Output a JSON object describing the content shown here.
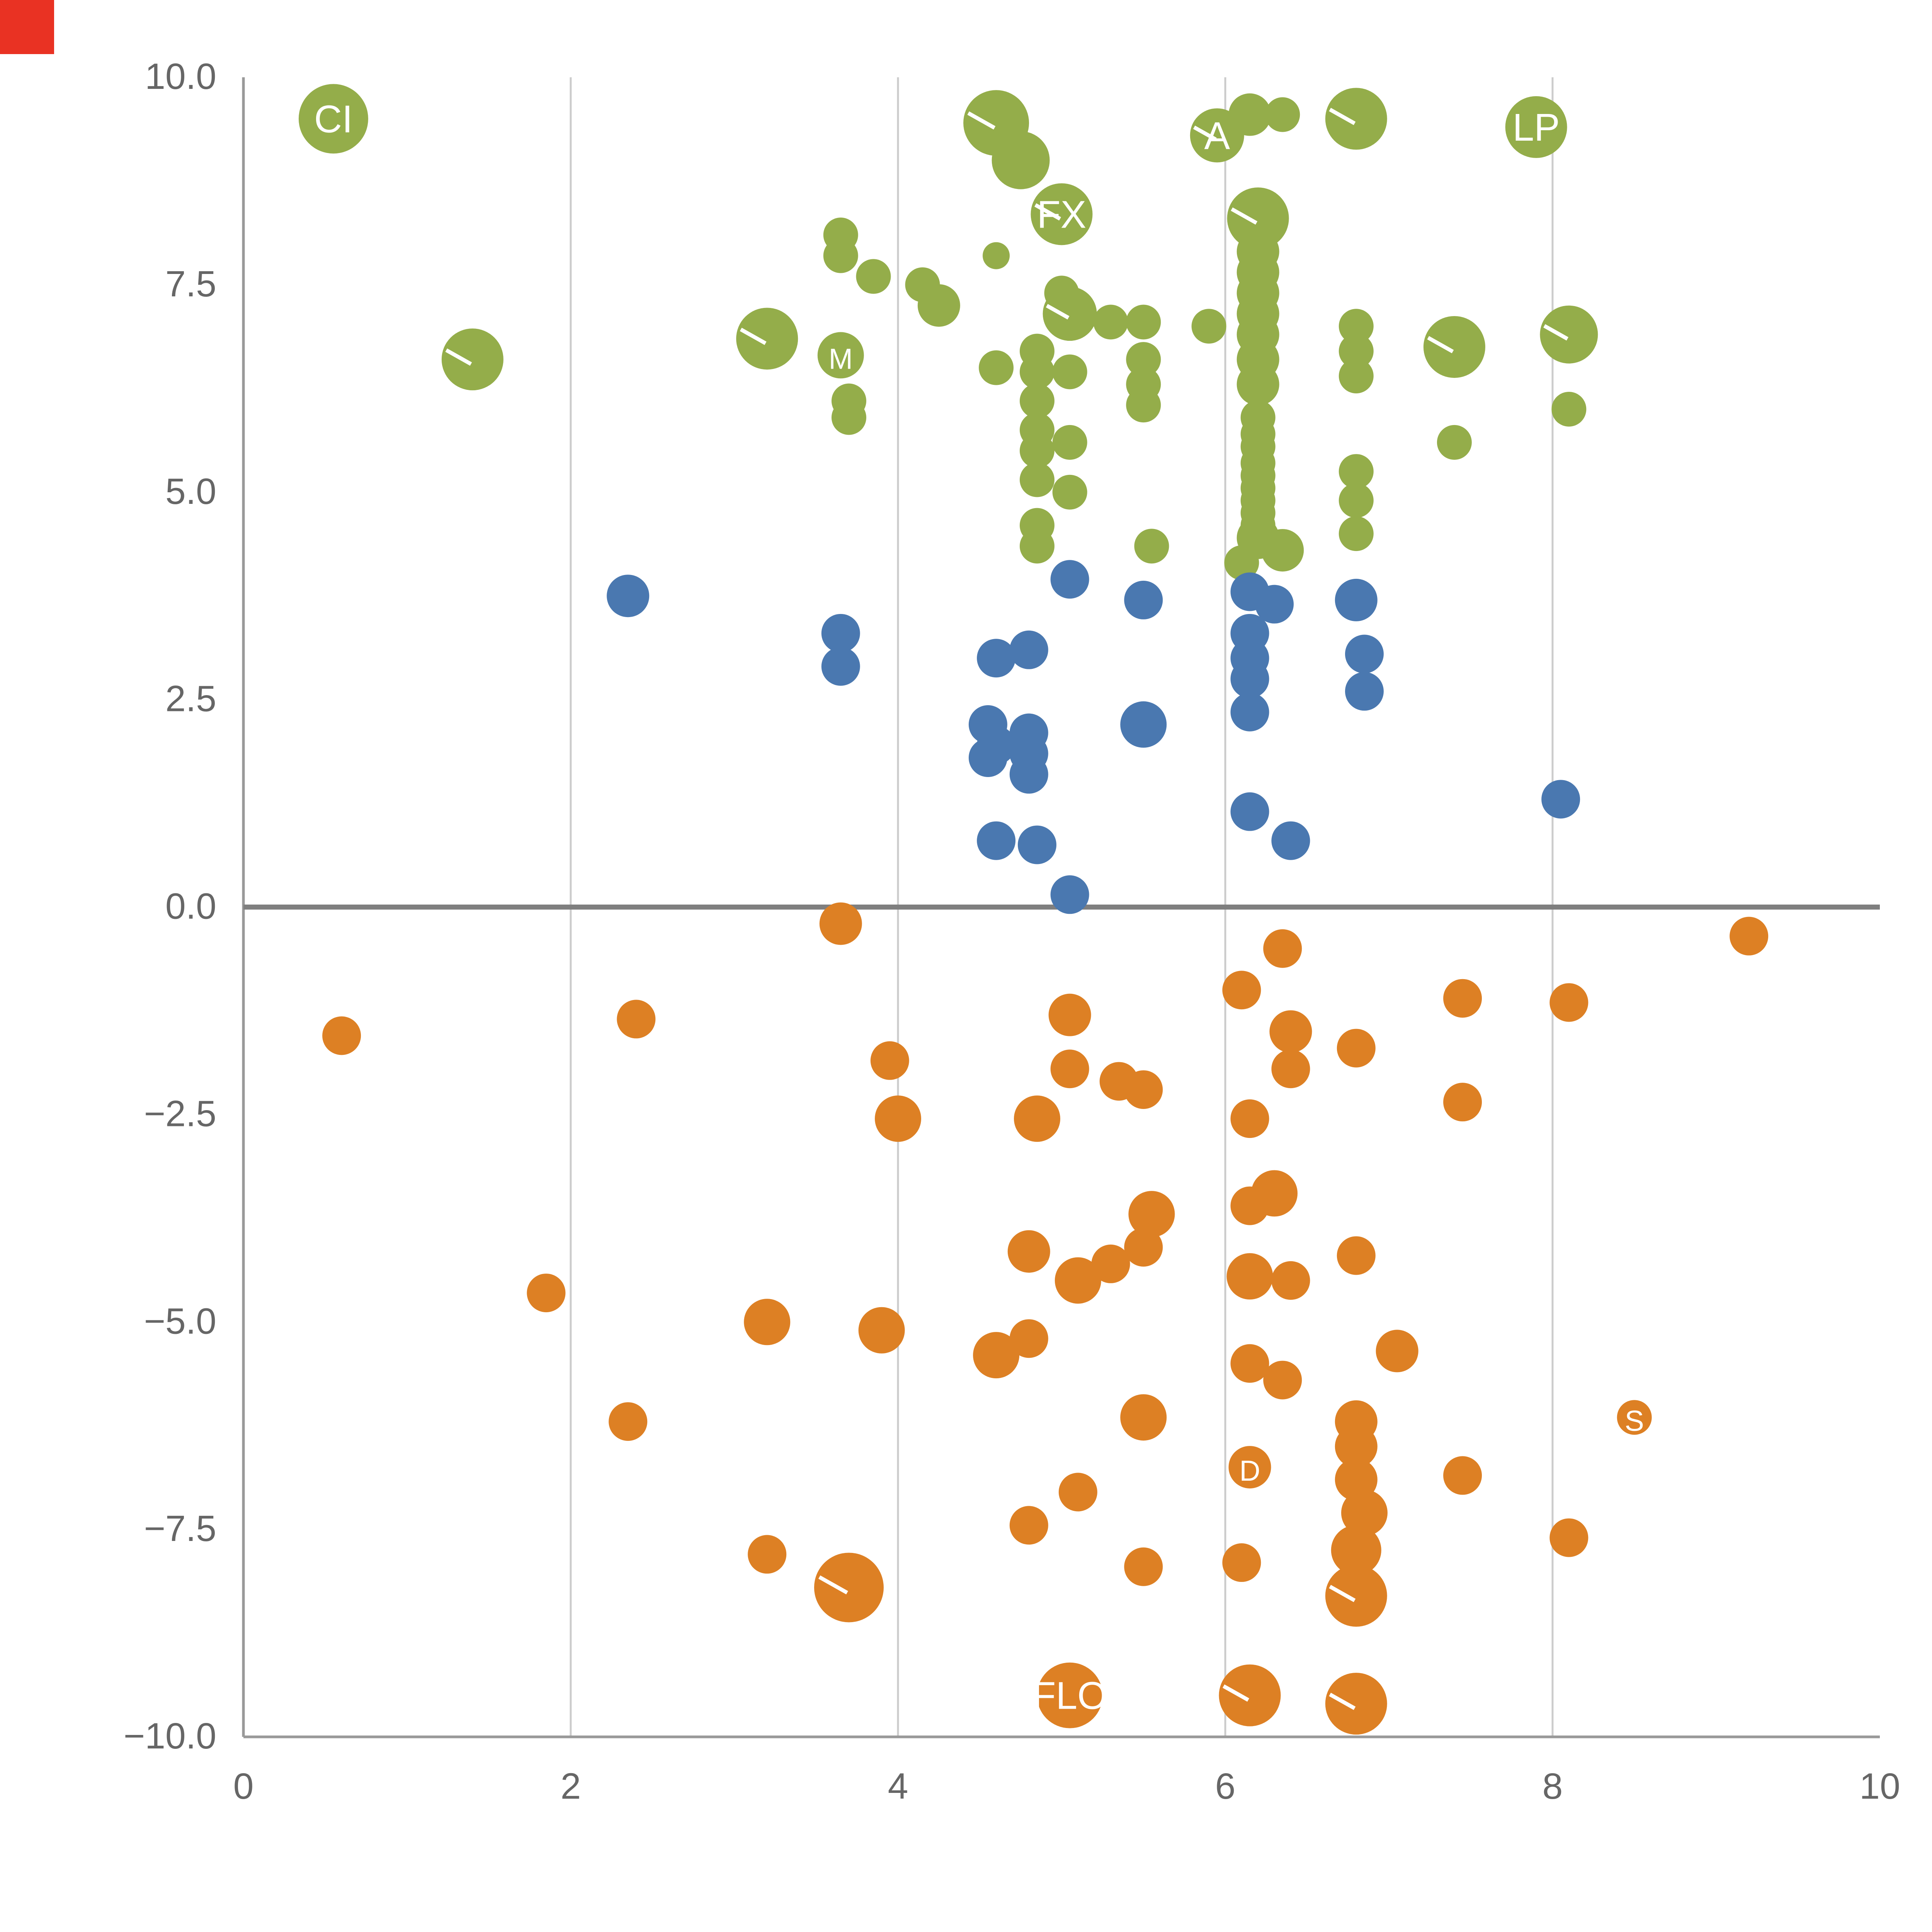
{
  "corner_marker": {
    "color": "#e93223",
    "size": 28
  },
  "chart_data": {
    "type": "scatter",
    "title": "",
    "xlabel": "",
    "ylabel": "",
    "xlim": [
      0,
      10
    ],
    "ylim": [
      -10,
      10
    ],
    "grid": "vertical-only",
    "grid_x": [
      2,
      4,
      6,
      8
    ],
    "zero_line_y": 0,
    "legend": "none",
    "x_ticks": [
      0,
      2,
      4,
      6,
      8,
      10
    ],
    "x_tick_labels": [
      "0",
      "2",
      "4",
      "6",
      "8",
      "10"
    ],
    "y_ticks": [
      10.0,
      7.5,
      5.0,
      2.5,
      0.0,
      -2.5,
      -5.0,
      -7.5,
      -10.0
    ],
    "y_tick_labels": [
      "10.0",
      "7.5",
      "5.0",
      "2.5",
      "0.0",
      "−2.5",
      "−5.0",
      "−7.5",
      "−10.0"
    ],
    "colors": {
      "grid": "#cccccc",
      "axis": "#999999",
      "zero_line": "#7f7f7f",
      "tick": "#666666",
      "bubble_label": "#ffffff"
    },
    "series": [
      {
        "name": "green",
        "color": "#94ad4a",
        "points": [
          [
            0.55,
            9.5,
            18,
            "CI"
          ],
          [
            4.6,
            9.45,
            17,
            "",
            1
          ],
          [
            4.75,
            9.0,
            15
          ],
          [
            5.95,
            9.3,
            14,
            "A",
            1
          ],
          [
            6.15,
            9.55,
            11
          ],
          [
            6.35,
            9.55,
            9
          ],
          [
            6.8,
            9.5,
            16,
            "",
            1
          ],
          [
            7.9,
            9.4,
            16,
            "LP"
          ],
          [
            5.0,
            8.35,
            16,
            "FX",
            1
          ],
          [
            6.2,
            8.3,
            16,
            "",
            1
          ],
          [
            3.65,
            8.1,
            9
          ],
          [
            3.65,
            7.85,
            9
          ],
          [
            4.6,
            7.85,
            7
          ],
          [
            6.2,
            7.9,
            11
          ],
          [
            6.2,
            7.65,
            11
          ],
          [
            3.85,
            7.6,
            9
          ],
          [
            4.15,
            7.5,
            9
          ],
          [
            4.25,
            7.25,
            11
          ],
          [
            5.0,
            7.4,
            9
          ],
          [
            5.05,
            7.15,
            14,
            "",
            1
          ],
          [
            5.3,
            7.05,
            9
          ],
          [
            5.5,
            7.05,
            9
          ],
          [
            5.9,
            7.0,
            9
          ],
          [
            6.2,
            7.4,
            11
          ],
          [
            6.2,
            7.15,
            11
          ],
          [
            6.2,
            6.9,
            11
          ],
          [
            6.8,
            7.0,
            9
          ],
          [
            7.4,
            6.75,
            16,
            "",
            1
          ],
          [
            8.1,
            6.9,
            15,
            "",
            1
          ],
          [
            3.2,
            6.85,
            16,
            "",
            1
          ],
          [
            1.4,
            6.6,
            16,
            "",
            1
          ],
          [
            3.65,
            6.65,
            12,
            "M"
          ],
          [
            4.6,
            6.5,
            9
          ],
          [
            4.85,
            6.7,
            9
          ],
          [
            4.85,
            6.45,
            9
          ],
          [
            5.05,
            6.45,
            9
          ],
          [
            5.5,
            6.6,
            9
          ],
          [
            5.5,
            6.3,
            9
          ],
          [
            5.5,
            6.05,
            9
          ],
          [
            6.2,
            6.6,
            11
          ],
          [
            6.2,
            6.3,
            11
          ],
          [
            6.8,
            6.7,
            9
          ],
          [
            6.8,
            6.4,
            9
          ],
          [
            8.1,
            6.0,
            9
          ],
          [
            3.7,
            6.1,
            9
          ],
          [
            3.7,
            5.9,
            9
          ],
          [
            4.85,
            6.1,
            9
          ],
          [
            4.85,
            5.75,
            9
          ],
          [
            4.85,
            5.5,
            9
          ],
          [
            5.05,
            5.6,
            9
          ],
          [
            6.2,
            5.9,
            9
          ],
          [
            6.2,
            5.7,
            9
          ],
          [
            6.2,
            5.55,
            9
          ],
          [
            7.4,
            5.6,
            9
          ],
          [
            4.85,
            5.15,
            9
          ],
          [
            5.05,
            5.0,
            9
          ],
          [
            6.2,
            5.35,
            9
          ],
          [
            6.2,
            5.2,
            9
          ],
          [
            6.2,
            5.05,
            9
          ],
          [
            6.8,
            5.25,
            9
          ],
          [
            6.8,
            4.9,
            9
          ],
          [
            4.85,
            4.6,
            9
          ],
          [
            4.85,
            4.35,
            9
          ],
          [
            5.55,
            4.35,
            9
          ],
          [
            6.2,
            4.9,
            9
          ],
          [
            6.2,
            4.75,
            9
          ],
          [
            6.2,
            4.6,
            9
          ],
          [
            6.2,
            4.45,
            11
          ],
          [
            6.35,
            4.3,
            11
          ],
          [
            6.1,
            4.15,
            9
          ],
          [
            6.8,
            4.5,
            9
          ]
        ]
      },
      {
        "name": "blue",
        "color": "#4a78b0",
        "points": [
          [
            2.35,
            3.75,
            11
          ],
          [
            3.65,
            3.3,
            10
          ],
          [
            3.65,
            2.9,
            10
          ],
          [
            5.05,
            3.95,
            10
          ],
          [
            5.5,
            3.7,
            10
          ],
          [
            6.15,
            3.8,
            10
          ],
          [
            6.3,
            3.65,
            10
          ],
          [
            6.8,
            3.7,
            11
          ],
          [
            4.6,
            3.0,
            10
          ],
          [
            4.8,
            3.1,
            10
          ],
          [
            6.15,
            3.3,
            10
          ],
          [
            6.15,
            3.0,
            10
          ],
          [
            6.85,
            3.05,
            10
          ],
          [
            6.15,
            2.75,
            10
          ],
          [
            6.85,
            2.6,
            10
          ],
          [
            6.15,
            2.35,
            10
          ],
          [
            5.5,
            2.2,
            12
          ],
          [
            4.55,
            2.2,
            10
          ],
          [
            4.6,
            1.95,
            10
          ],
          [
            4.8,
            2.1,
            10
          ],
          [
            4.55,
            1.8,
            10
          ],
          [
            4.8,
            1.85,
            10
          ],
          [
            4.8,
            1.6,
            10
          ],
          [
            6.15,
            1.15,
            10
          ],
          [
            6.4,
            0.8,
            10
          ],
          [
            4.6,
            0.8,
            10
          ],
          [
            4.85,
            0.75,
            10
          ],
          [
            5.05,
            0.15,
            10
          ],
          [
            8.05,
            1.3,
            10
          ]
        ]
      },
      {
        "name": "orange",
        "color": "#dd8024",
        "points": [
          [
            0.6,
            -1.55,
            10
          ],
          [
            1.85,
            -4.65,
            10
          ],
          [
            2.4,
            -1.35,
            10
          ],
          [
            2.35,
            -6.2,
            10
          ],
          [
            3.2,
            -5.0,
            12
          ],
          [
            3.2,
            -7.8,
            10
          ],
          [
            3.65,
            -0.2,
            11
          ],
          [
            3.7,
            -8.2,
            18,
            "",
            1
          ],
          [
            3.95,
            -1.85,
            10
          ],
          [
            4.0,
            -2.55,
            12
          ],
          [
            3.9,
            -5.1,
            12
          ],
          [
            4.6,
            -5.4,
            12
          ],
          [
            4.8,
            -5.2,
            10
          ],
          [
            4.8,
            -4.15,
            11
          ],
          [
            4.85,
            -2.55,
            12
          ],
          [
            4.8,
            -7.45,
            10
          ],
          [
            5.05,
            -1.3,
            11
          ],
          [
            5.05,
            -1.95,
            10
          ],
          [
            5.1,
            -4.5,
            12
          ],
          [
            5.1,
            -7.05,
            10
          ],
          [
            5.3,
            -4.3,
            10
          ],
          [
            5.35,
            -2.1,
            10
          ],
          [
            5.5,
            -2.2,
            10
          ],
          [
            5.5,
            -4.1,
            10
          ],
          [
            5.55,
            -3.7,
            12
          ],
          [
            5.5,
            -6.15,
            12
          ],
          [
            5.5,
            -7.95,
            10
          ],
          [
            5.05,
            -9.5,
            17,
            "FLO"
          ],
          [
            6.1,
            -1.0,
            10
          ],
          [
            6.35,
            -0.5,
            10
          ],
          [
            6.4,
            -1.5,
            11
          ],
          [
            6.4,
            -1.95,
            10
          ],
          [
            6.15,
            -2.55,
            10
          ],
          [
            6.3,
            -3.45,
            12
          ],
          [
            6.15,
            -3.6,
            10
          ],
          [
            6.15,
            -4.45,
            12
          ],
          [
            6.4,
            -4.5,
            10
          ],
          [
            6.15,
            -5.5,
            10
          ],
          [
            6.35,
            -5.7,
            10
          ],
          [
            6.15,
            -6.75,
            11,
            "D"
          ],
          [
            6.1,
            -7.9,
            10
          ],
          [
            6.15,
            -9.5,
            16,
            "",
            1
          ],
          [
            6.8,
            -1.7,
            10
          ],
          [
            6.8,
            -4.2,
            10
          ],
          [
            7.05,
            -5.35,
            11
          ],
          [
            6.8,
            -6.2,
            11
          ],
          [
            6.8,
            -6.5,
            11
          ],
          [
            6.8,
            -6.9,
            11
          ],
          [
            6.85,
            -7.3,
            12
          ],
          [
            6.8,
            -7.75,
            13
          ],
          [
            6.8,
            -8.3,
            16,
            "",
            1
          ],
          [
            6.8,
            -9.6,
            16,
            "",
            1
          ],
          [
            7.45,
            -1.1,
            10
          ],
          [
            7.45,
            -2.35,
            10
          ],
          [
            7.45,
            -6.85,
            10
          ],
          [
            8.1,
            -1.15,
            10
          ],
          [
            8.1,
            -7.6,
            10
          ],
          [
            8.5,
            -6.15,
            9,
            "S"
          ],
          [
            9.2,
            -0.35,
            10
          ]
        ]
      }
    ]
  }
}
